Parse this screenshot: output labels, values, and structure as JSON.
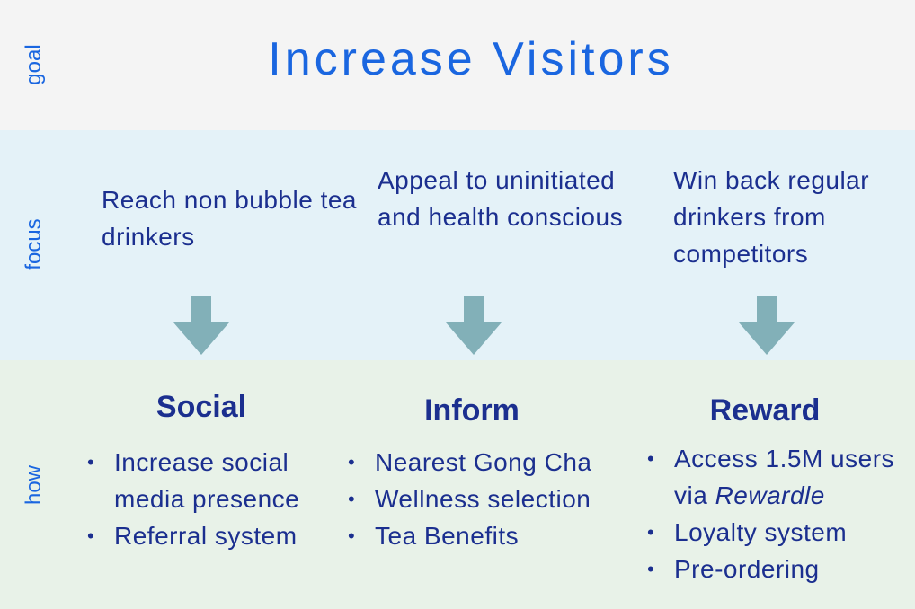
{
  "labels": {
    "goal": "goal",
    "focus": "focus",
    "how": "how"
  },
  "goal": {
    "title": "Increase Visitors"
  },
  "focus": [
    {
      "text": "Reach non bubble tea drinkers"
    },
    {
      "text": "Appeal to uninitiated and health conscious"
    },
    {
      "text": "Win back regular drinkers from competitors"
    }
  ],
  "how": [
    {
      "title": "Social",
      "items": [
        "Increase social media presence",
        "Referral system"
      ]
    },
    {
      "title": "Inform",
      "items": [
        "Nearest Gong Cha",
        "Wellness selection",
        "Tea Benefits"
      ]
    },
    {
      "title": "Reward",
      "items": [
        "Access 1.5M users via",
        "Rewardle",
        "Loyalty system",
        "Pre-ordering"
      ]
    }
  ],
  "colors": {
    "accent": "#1a66e0",
    "text": "#1b2f8f",
    "arrow": "#82b0b8",
    "goal_band": "#f4f4f4",
    "focus_band": "#e4f2f8",
    "how_band": "#e8f2e8"
  },
  "bullet_glyph": "•"
}
